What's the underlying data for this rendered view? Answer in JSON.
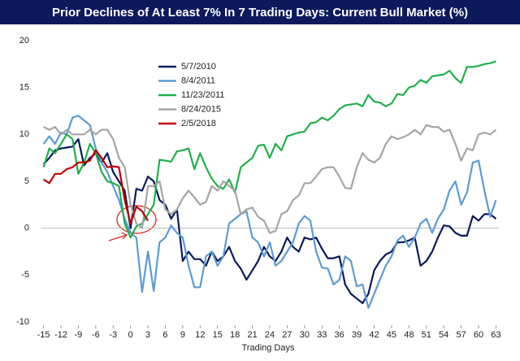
{
  "chart_data": {
    "type": "line",
    "title": "Prior Declines of At Least 7% In 7 Trading Days: Current Bull Market (%)",
    "x_label": "Trading Days",
    "x": [
      -15,
      -14,
      -13,
      -12,
      -11,
      -10,
      -9,
      -8,
      -7,
      -6,
      -5,
      -4,
      -3,
      -2,
      -1,
      0,
      1,
      2,
      3,
      4,
      5,
      6,
      7,
      8,
      9,
      10,
      11,
      12,
      13,
      14,
      15,
      16,
      17,
      18,
      19,
      20,
      21,
      22,
      23,
      24,
      25,
      26,
      27,
      28,
      29,
      30,
      31,
      32,
      33,
      34,
      35,
      36,
      37,
      38,
      39,
      40,
      41,
      42,
      43,
      44,
      45,
      46,
      47,
      48,
      49,
      50,
      51,
      52,
      53,
      54,
      55,
      56,
      57,
      58,
      59,
      60,
      61,
      62,
      63
    ],
    "series": [
      {
        "name": "5/7/2010",
        "color": "#0c1a5c",
        "values": [
          6.8,
          7.5,
          8.3,
          8.5,
          8.6,
          8.7,
          9.5,
          6.7,
          7.5,
          8,
          7,
          8,
          6,
          5,
          4,
          0,
          4.2,
          4,
          5.5,
          5,
          3,
          2.5,
          1,
          2,
          -3.5,
          -2.5,
          -3.3,
          -3.3,
          -4,
          -2.5,
          -3.5,
          -3,
          -2,
          -3.5,
          -4.3,
          -5.5,
          -4.5,
          -3.5,
          -2,
          -3,
          -3.5,
          -2.5,
          -1,
          -2,
          -2.5,
          -1,
          -1.2,
          -1,
          -2.2,
          -3.2,
          -3.2,
          -3,
          -6,
          -7,
          -7.5,
          -8,
          -7,
          -4.5,
          -3.5,
          -2.8,
          -2.5,
          -1.5,
          -1.5,
          -1.3,
          -1,
          -4,
          -3.5,
          -2.5,
          -1,
          0.3,
          0.2,
          -0.5,
          -0.8,
          -0.8,
          1.3,
          0.8,
          1.5,
          1.5,
          1
        ]
      },
      {
        "name": "8/4/2011",
        "color": "#5b9bd5",
        "values": [
          9,
          9.8,
          9,
          10.2,
          10,
          11.8,
          12,
          11.5,
          11,
          8.5,
          7,
          6,
          4.5,
          3,
          1,
          -0.5,
          -1,
          -6.8,
          -2.5,
          -6.7,
          -1.5,
          -1,
          0.3,
          -0.5,
          -1,
          -4,
          -6.3,
          -6.3,
          -3,
          -2.5,
          -4,
          -3,
          0.5,
          1,
          1.5,
          1.8,
          -1,
          -1.5,
          -3,
          -1.5,
          -4,
          -3.5,
          -2.5,
          -1.5,
          0.5,
          1.3,
          0.8,
          -2.5,
          -4.2,
          -4.3,
          -6,
          -5.5,
          -3,
          -3.5,
          -6.2,
          -6,
          -8.5,
          -7,
          -5.5,
          -4,
          -3,
          -1.3,
          -0.8,
          -2,
          -1,
          0.5,
          1,
          -0.5,
          1,
          2,
          4,
          5,
          2.5,
          3.8,
          7,
          7.2,
          4,
          1.2,
          3
        ]
      },
      {
        "name": "11/23/2011",
        "color": "#1fb04a",
        "values": [
          6.5,
          8.5,
          8,
          9,
          10,
          9.5,
          5.8,
          7,
          9,
          8,
          6,
          5,
          4.8,
          4.5,
          0.5,
          -1,
          0.2,
          0.5,
          1.5,
          2.5,
          7.3,
          7.2,
          7.1,
          8.2,
          8.3,
          8.5,
          6.3,
          8,
          6.5,
          5.3,
          4.5,
          4.2,
          5.2,
          3.8,
          6.5,
          7,
          7.5,
          8.8,
          8.9,
          7.5,
          9,
          8.3,
          9.8,
          10,
          10.2,
          10.3,
          11.2,
          11.3,
          11.8,
          11.5,
          12,
          12.7,
          13.1,
          13.2,
          13.3,
          13,
          14.2,
          13.5,
          13.4,
          13,
          13.3,
          14.3,
          14.2,
          15,
          15.2,
          15.8,
          15.5,
          16.2,
          16.3,
          16.4,
          16.8,
          16,
          15.5,
          17.2,
          17.2,
          17.3,
          17.5,
          17.6,
          17.8
        ]
      },
      {
        "name": "8/24/2015",
        "color": "#a5a5a5",
        "values": [
          10.8,
          10.5,
          10.8,
          10,
          10.5,
          10,
          10,
          10,
          10.5,
          10,
          10.5,
          10.5,
          9.5,
          7.5,
          6.5,
          2.5,
          0.5,
          0,
          4.5,
          4.5,
          5,
          2,
          1.5,
          2,
          3.2,
          4,
          3.3,
          2.5,
          2.8,
          4.5,
          4,
          5,
          4.5,
          4,
          1.5,
          2,
          2.2,
          1.2,
          0.8,
          -0.5,
          -0.3,
          1.5,
          1.8,
          3,
          3.5,
          4.8,
          4.8,
          5.5,
          6.3,
          6.5,
          6.5,
          5.5,
          4.3,
          4.2,
          6.5,
          8,
          7.3,
          7,
          7.5,
          9,
          9.8,
          9.5,
          9.7,
          10,
          10.5,
          10,
          11,
          10.8,
          10.8,
          10.3,
          10.5,
          9,
          7.2,
          8.5,
          8.3,
          10,
          10.2,
          10,
          10.5
        ]
      },
      {
        "name": "2/5/2018",
        "color": "#c00000",
        "values": [
          5.2,
          4.8,
          5.8,
          5.8,
          6.3,
          6.5,
          7,
          7,
          7.2,
          8.3,
          7.5,
          6.5,
          6.6,
          6.5,
          3,
          0.5,
          2.3,
          1.8,
          0.8,
          null,
          null,
          null,
          null,
          null,
          null,
          null,
          null,
          null,
          null,
          null,
          null,
          null,
          null,
          null,
          null,
          null,
          null,
          null,
          null,
          null,
          null,
          null,
          null,
          null,
          null,
          null,
          null,
          null,
          null,
          null,
          null,
          null,
          null,
          null,
          null,
          null,
          null,
          null,
          null,
          null,
          null,
          null,
          null,
          null,
          null,
          null,
          null,
          null,
          null,
          null,
          null,
          null,
          null,
          null,
          null,
          null,
          null,
          null,
          null
        ]
      }
    ],
    "xlim": [
      -15.5,
      63.5
    ],
    "xticks": [
      -15,
      -12,
      -9,
      -6,
      -3,
      0,
      3,
      6,
      9,
      12,
      15,
      18,
      21,
      24,
      27,
      30,
      33,
      36,
      39,
      42,
      45,
      48,
      51,
      54,
      57,
      60,
      63
    ],
    "ylim": [
      -10,
      20
    ],
    "yticks": [
      -10,
      -5,
      0,
      5,
      10,
      15,
      20
    ],
    "grid": false,
    "legend": "upper-left"
  }
}
